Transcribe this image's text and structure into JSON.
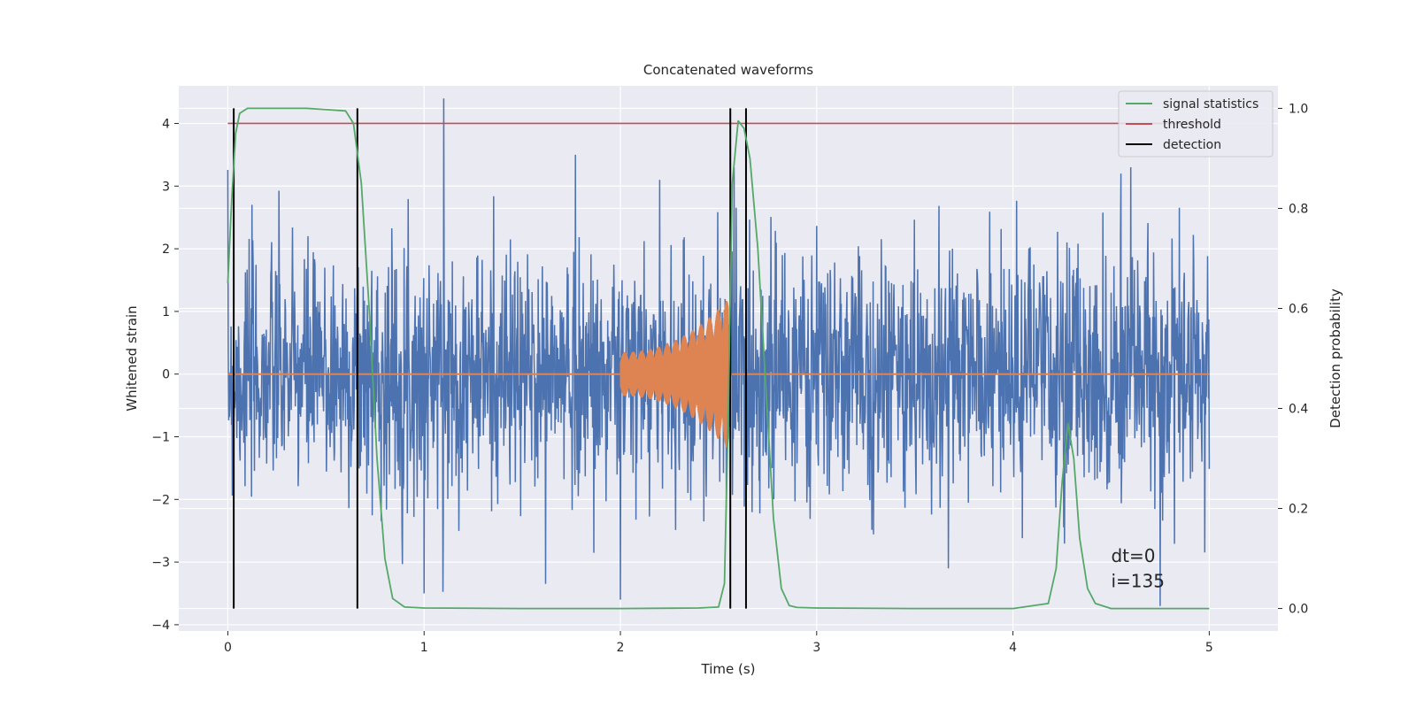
{
  "chart_data": {
    "type": "line",
    "title": "Concatenated waveforms",
    "xlabel": "Time (s)",
    "ylabel": "Whitened strain",
    "y2label": "Detection probability",
    "xlim": [
      -0.25,
      5.35
    ],
    "ylim": [
      -4.1,
      4.6
    ],
    "y2lim": [
      -0.045,
      1.045
    ],
    "x_ticks": [
      0,
      1,
      2,
      3,
      4,
      5
    ],
    "y_ticks": [
      -4,
      -3,
      -2,
      -1,
      0,
      1,
      2,
      3,
      4
    ],
    "y2_ticks": [
      0.0,
      0.2,
      0.4,
      0.6,
      0.8,
      1.0
    ],
    "x_tick_labels": [
      "0",
      "1",
      "2",
      "3",
      "4",
      "5"
    ],
    "y_tick_labels": [
      "−4",
      "−3",
      "−2",
      "−1",
      "0",
      "1",
      "2",
      "3",
      "4"
    ],
    "y2_tick_labels": [
      "0.0",
      "0.2",
      "0.4",
      "0.6",
      "0.8",
      "1.0"
    ],
    "grid": true,
    "legend_position": "top-right",
    "series": [
      {
        "name": "",
        "role": "whitened-strain",
        "axis": "left",
        "color": "#4c72b0",
        "description_values": {
          "x_range": [
            0,
            5
          ],
          "typical_amplitude": 1.0,
          "max": 4.4,
          "min": -3.7
        },
        "spikes": [
          [
            1.1,
            4.4
          ],
          [
            1.77,
            3.5
          ],
          [
            2.58,
            3.3
          ],
          [
            2.2,
            3.1
          ],
          [
            4.55,
            3.2
          ],
          [
            4.6,
            3.3
          ],
          [
            4.75,
            -3.7
          ],
          [
            1.0,
            -3.5
          ],
          [
            2.0,
            -3.6
          ],
          [
            3.67,
            -3.1
          ]
        ]
      },
      {
        "name": "",
        "role": "injected-waveform",
        "axis": "left",
        "color": "#dd8452",
        "chirp": {
          "start": 2.0,
          "end": 2.55,
          "amp_start": 0.35,
          "amp_end": 1.2
        }
      },
      {
        "name": "signal statistics",
        "axis": "right",
        "color": "#55a868",
        "x": [
          0.0,
          0.02,
          0.04,
          0.06,
          0.1,
          0.2,
          0.4,
          0.6,
          0.64,
          0.68,
          0.72,
          0.76,
          0.8,
          0.84,
          0.9,
          1.0,
          1.5,
          2.0,
          2.4,
          2.5,
          2.53,
          2.55,
          2.57,
          2.6,
          2.63,
          2.66,
          2.7,
          2.74,
          2.78,
          2.82,
          2.86,
          2.9,
          3.0,
          3.5,
          4.0,
          4.18,
          4.22,
          4.25,
          4.28,
          4.31,
          4.34,
          4.38,
          4.42,
          4.5,
          5.0
        ],
        "y": [
          0.65,
          0.82,
          0.95,
          0.99,
          1.0,
          1.0,
          1.0,
          0.995,
          0.97,
          0.85,
          0.6,
          0.3,
          0.1,
          0.02,
          0.003,
          0.001,
          0.0,
          0.0,
          0.001,
          0.003,
          0.05,
          0.4,
          0.85,
          0.975,
          0.96,
          0.9,
          0.72,
          0.45,
          0.18,
          0.04,
          0.006,
          0.002,
          0.001,
          0.0,
          0.0,
          0.01,
          0.08,
          0.25,
          0.37,
          0.3,
          0.14,
          0.04,
          0.01,
          0.0,
          0.0
        ]
      },
      {
        "name": "threshold",
        "axis": "left",
        "color": "#c44e52",
        "x": [
          0,
          5
        ],
        "y": [
          4,
          4
        ]
      },
      {
        "name": "detection",
        "axis": "right",
        "color": "#000000",
        "vertical_lines_x": [
          0.03,
          0.66,
          2.56,
          2.64
        ],
        "y_range": [
          0.0,
          1.0
        ]
      }
    ],
    "annotations": [
      {
        "text": "dt=0",
        "x": 4.5,
        "y": -2.9
      },
      {
        "text": "i=135",
        "x": 4.5,
        "y": -3.3
      }
    ]
  }
}
